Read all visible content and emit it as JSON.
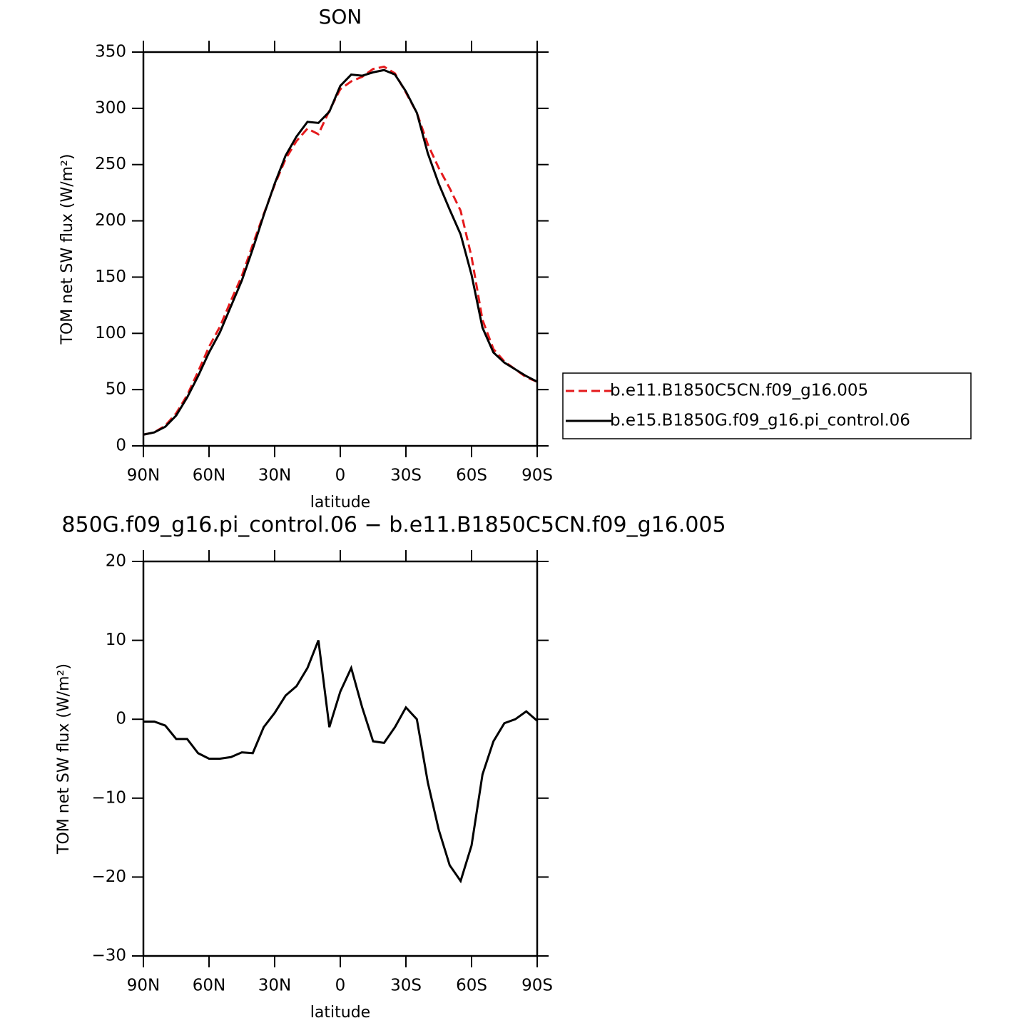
{
  "chart_data": [
    {
      "type": "line",
      "title": "SON",
      "x_label": "latitude",
      "y_label": "TOM net SW flux (W/m²)",
      "x": [
        90,
        85,
        80,
        75,
        70,
        65,
        60,
        55,
        50,
        45,
        40,
        35,
        30,
        25,
        20,
        15,
        10,
        5,
        0,
        -5,
        -10,
        -15,
        -20,
        -25,
        -30,
        -35,
        -40,
        -45,
        -50,
        -55,
        -60,
        -65,
        -70,
        -75,
        -80,
        -85,
        -90
      ],
      "series": [
        {
          "name": "b.e11.B1850C5CN.f09_g16.005",
          "color": "#e41a1c",
          "line_style": "dashed",
          "values": [
            10,
            12,
            18,
            29,
            45,
            66,
            88,
            106,
            129,
            151,
            179,
            206,
            232,
            255,
            271,
            282,
            277,
            298,
            317,
            324,
            328,
            335,
            337,
            331,
            314,
            296,
            268,
            247,
            229,
            209,
            168,
            112,
            86,
            75,
            68,
            61,
            57
          ]
        },
        {
          "name": "b.e15.B1850G.f09_g16.pi_control.06",
          "color": "#000000",
          "line_style": "solid",
          "values": [
            10,
            12,
            17,
            27,
            43,
            62,
            83,
            101,
            124,
            147,
            175,
            205,
            233,
            258,
            275,
            288,
            287,
            297,
            320,
            330,
            329,
            332,
            334,
            330,
            315,
            296,
            260,
            233,
            210,
            188,
            152,
            105,
            83,
            74,
            68,
            62,
            57
          ]
        }
      ],
      "xlim": [
        90,
        -90
      ],
      "xticks": [
        {
          "value": 90,
          "label": "90N"
        },
        {
          "value": 60,
          "label": "60N"
        },
        {
          "value": 30,
          "label": "30N"
        },
        0,
        {
          "value": -30,
          "label": "30S"
        },
        {
          "value": -60,
          "label": "60S"
        },
        {
          "value": -90,
          "label": "90S"
        }
      ],
      "ylim": [
        0,
        350
      ],
      "yticks": [
        0,
        50,
        100,
        150,
        200,
        250,
        300,
        350
      ]
    },
    {
      "type": "line",
      "title": "850G.f09_g16.pi_control.06 − b.e11.B1850C5CN.f09_g16.005",
      "x_label": "latitude",
      "y_label": "TOM net SW flux (W/m²)",
      "x": [
        90,
        85,
        80,
        75,
        70,
        65,
        60,
        55,
        50,
        45,
        40,
        35,
        30,
        25,
        20,
        15,
        10,
        5,
        0,
        -5,
        -10,
        -15,
        -20,
        -25,
        -30,
        -35,
        -40,
        -45,
        -50,
        -55,
        -60,
        -65,
        -70,
        -75,
        -80,
        -85,
        -90
      ],
      "series": [
        {
          "color": "#000000",
          "line_style": "solid",
          "values": [
            -0.3,
            -0.3,
            -0.8,
            -2.5,
            -2.5,
            -4.3,
            -5,
            -5,
            -4.8,
            -4.2,
            -4.3,
            -1,
            0.8,
            3,
            4.2,
            6.5,
            10,
            -1,
            3.5,
            6.5,
            1.5,
            -2.8,
            -3,
            -1,
            1.5,
            0,
            -8,
            -14,
            -18.5,
            -20.5,
            -16,
            -7,
            -2.8,
            -0.5,
            0,
            1,
            -0.2
          ]
        }
      ],
      "xlim": [
        90,
        -90
      ],
      "xticks": [
        {
          "value": 90,
          "label": "90N"
        },
        {
          "value": 60,
          "label": "60N"
        },
        {
          "value": 30,
          "label": "30N"
        },
        0,
        {
          "value": -30,
          "label": "30S"
        },
        {
          "value": -60,
          "label": "60S"
        },
        {
          "value": -90,
          "label": "90S"
        }
      ],
      "ylim": [
        -30,
        20
      ],
      "yticks": [
        {
          "value": -30,
          "label": "−30"
        },
        {
          "value": -20,
          "label": "−20"
        },
        {
          "value": -10,
          "label": "−10"
        },
        0,
        10,
        20
      ]
    }
  ]
}
